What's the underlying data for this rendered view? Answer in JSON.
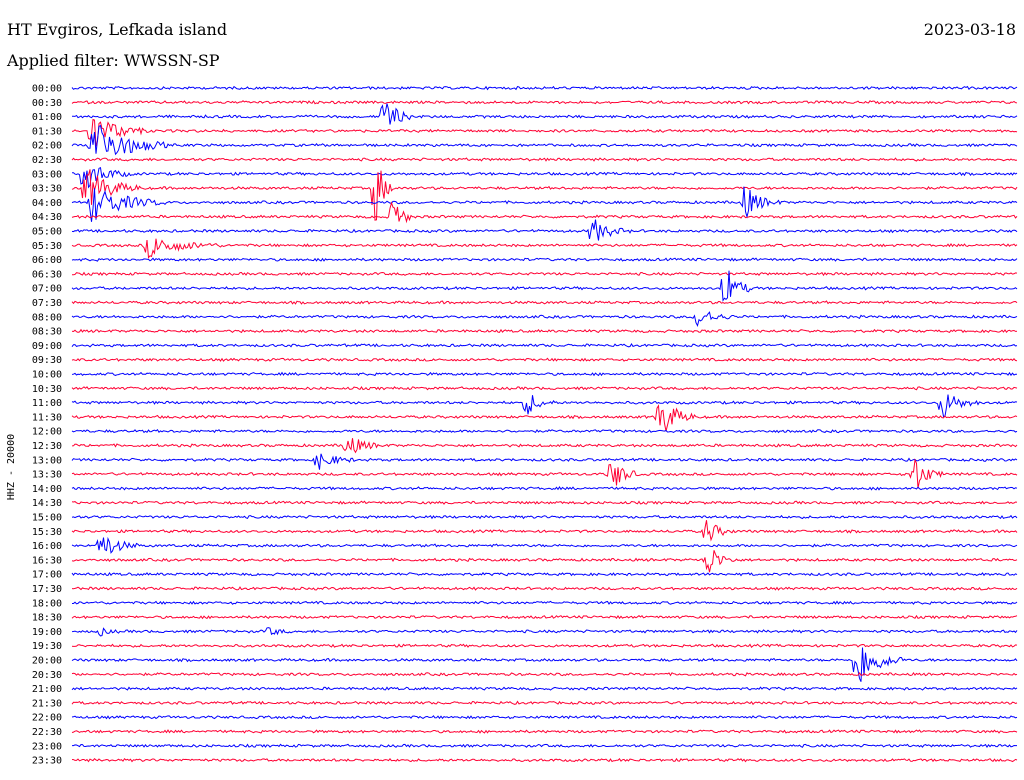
{
  "header": {
    "station": "HT Evgiros, Lefkada island",
    "date": "2023-03-18",
    "filter": "Applied filter: WWSSN-SP"
  },
  "chart_data": {
    "type": "line",
    "title": "HT Evgiros, Lefkada island",
    "ylabel": "HHZ - 20000",
    "row_labels": [
      "00:00",
      "00:30",
      "01:00",
      "01:30",
      "02:00",
      "02:30",
      "03:00",
      "03:30",
      "04:00",
      "04:30",
      "05:00",
      "05:30",
      "06:00",
      "06:30",
      "07:00",
      "07:30",
      "08:00",
      "08:30",
      "09:00",
      "09:30",
      "10:00",
      "10:30",
      "11:00",
      "11:30",
      "12:00",
      "12:30",
      "13:00",
      "13:30",
      "14:00",
      "14:30",
      "15:00",
      "15:30",
      "16:00",
      "16:30",
      "17:00",
      "17:30",
      "18:00",
      "18:30",
      "19:00",
      "19:30",
      "20:00",
      "20:30",
      "21:00",
      "21:30",
      "22:00",
      "22:30",
      "23:00",
      "23:30"
    ],
    "colors": {
      "even_row": "#0000ff",
      "odd_row": "#ff0033"
    },
    "events": [
      {
        "row": 3,
        "x": 0.021,
        "amp": 20,
        "dur": 0.06
      },
      {
        "row": 4,
        "x": 0.02,
        "amp": 30,
        "dur": 0.08
      },
      {
        "row": 6,
        "x": 0.012,
        "amp": 18,
        "dur": 0.05
      },
      {
        "row": 7,
        "x": 0.015,
        "amp": 22,
        "dur": 0.06
      },
      {
        "row": 8,
        "x": 0.02,
        "amp": 20,
        "dur": 0.08
      },
      {
        "row": 11,
        "x": 0.08,
        "amp": 12,
        "dur": 0.08
      },
      {
        "row": 2,
        "x": 0.33,
        "amp": 22,
        "dur": 0.03
      },
      {
        "row": 7,
        "x": 0.32,
        "amp": 44,
        "dur": 0.02
      },
      {
        "row": 9,
        "x": 0.34,
        "amp": 26,
        "dur": 0.02
      },
      {
        "row": 8,
        "x": 0.71,
        "amp": 18,
        "dur": 0.04
      },
      {
        "row": 10,
        "x": 0.55,
        "amp": 14,
        "dur": 0.04
      },
      {
        "row": 14,
        "x": 0.69,
        "amp": 26,
        "dur": 0.03
      },
      {
        "row": 16,
        "x": 0.66,
        "amp": 12,
        "dur": 0.04
      },
      {
        "row": 22,
        "x": 0.48,
        "amp": 14,
        "dur": 0.03
      },
      {
        "row": 23,
        "x": 0.62,
        "amp": 26,
        "dur": 0.04
      },
      {
        "row": 22,
        "x": 0.92,
        "amp": 16,
        "dur": 0.04
      },
      {
        "row": 25,
        "x": 0.29,
        "amp": 12,
        "dur": 0.04
      },
      {
        "row": 26,
        "x": 0.26,
        "amp": 10,
        "dur": 0.04
      },
      {
        "row": 27,
        "x": 0.57,
        "amp": 20,
        "dur": 0.03
      },
      {
        "row": 27,
        "x": 0.89,
        "amp": 22,
        "dur": 0.03
      },
      {
        "row": 32,
        "x": 0.03,
        "amp": 16,
        "dur": 0.04
      },
      {
        "row": 31,
        "x": 0.67,
        "amp": 14,
        "dur": 0.03
      },
      {
        "row": 33,
        "x": 0.67,
        "amp": 22,
        "dur": 0.03
      },
      {
        "row": 40,
        "x": 0.83,
        "amp": 30,
        "dur": 0.05
      },
      {
        "row": 38,
        "x": 0.03,
        "amp": 4,
        "dur": 0.02
      },
      {
        "row": 38,
        "x": 0.21,
        "amp": 5,
        "dur": 0.02
      }
    ]
  }
}
